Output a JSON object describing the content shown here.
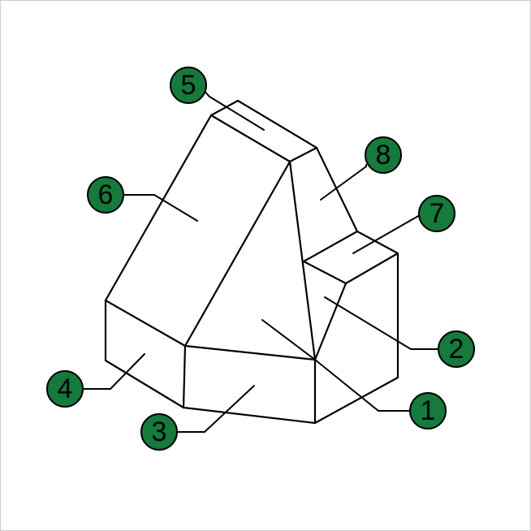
{
  "diagram": {
    "title": "",
    "badge_color": "#157a3c",
    "line_color": "#000000",
    "callouts": [
      {
        "id": "1",
        "label": "1"
      },
      {
        "id": "2",
        "label": "2"
      },
      {
        "id": "3",
        "label": "3"
      },
      {
        "id": "4",
        "label": "4"
      },
      {
        "id": "5",
        "label": "5"
      },
      {
        "id": "6",
        "label": "6"
      },
      {
        "id": "7",
        "label": "7"
      },
      {
        "id": "8",
        "label": "8"
      }
    ]
  }
}
